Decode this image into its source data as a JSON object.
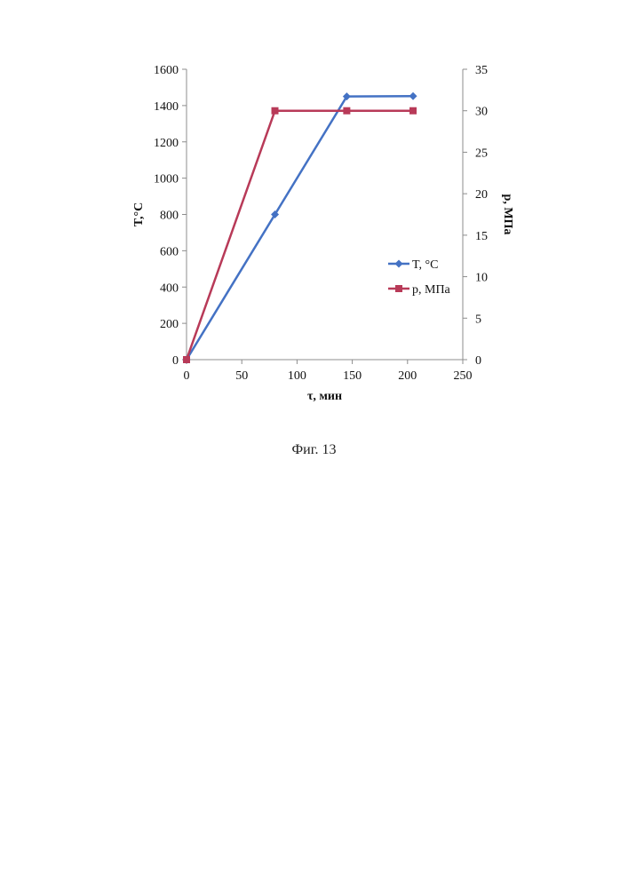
{
  "chart_data": {
    "type": "line",
    "xlabel": "τ, мин",
    "ylabel_left": "T,°C",
    "ylabel_right": "p, МПа",
    "xlim": [
      0,
      250
    ],
    "x_ticks": [
      0,
      50,
      100,
      150,
      200,
      250
    ],
    "ylim_left": [
      0,
      1600
    ],
    "y_ticks_left": [
      0,
      200,
      400,
      600,
      800,
      1000,
      1200,
      1400,
      1600
    ],
    "ylim_right": [
      0,
      35
    ],
    "y_ticks_right": [
      0,
      5,
      10,
      15,
      20,
      25,
      30,
      35
    ],
    "grid": false,
    "legend_position": "right-middle",
    "series": [
      {
        "name": "T, °C",
        "axis": "left",
        "color": "#4472C4",
        "marker": "diamond",
        "x": [
          0,
          80,
          145,
          205
        ],
        "y": [
          0,
          800,
          1450,
          1452
        ]
      },
      {
        "name": "p, МПа",
        "axis": "right",
        "color": "#B83A58",
        "marker": "square",
        "x": [
          0,
          80,
          145,
          205
        ],
        "y": [
          0,
          30,
          30,
          30
        ]
      }
    ]
  },
  "caption": "Фиг. 13"
}
